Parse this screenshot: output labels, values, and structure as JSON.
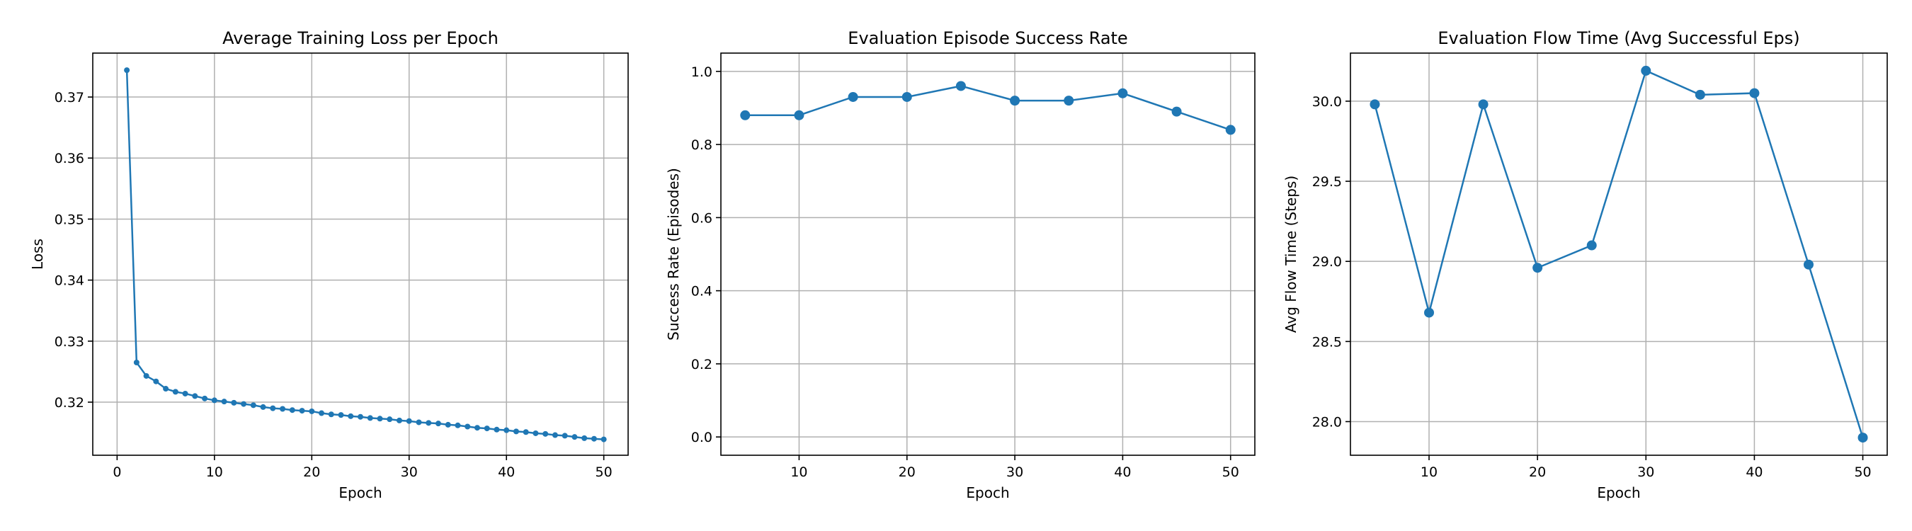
{
  "colors": {
    "series": "#1f77b4",
    "grid": "#b0b0b0"
  },
  "chart_data": [
    {
      "type": "line",
      "title": "Average Training Loss per Epoch",
      "xlabel": "Epoch",
      "ylabel": "Loss",
      "grid": true,
      "marker": "small-dot",
      "xlim": [
        -2.5,
        52.5
      ],
      "ylim": [
        0.3113,
        0.3772
      ],
      "xticks": [
        0,
        10,
        20,
        30,
        40,
        50
      ],
      "yticks": [
        0.32,
        0.33,
        0.34,
        0.35,
        0.36,
        0.37
      ],
      "ytick_labels": [
        "0.32",
        "0.33",
        "0.34",
        "0.35",
        "0.36",
        "0.37"
      ],
      "x": [
        1,
        2,
        3,
        4,
        5,
        6,
        7,
        8,
        9,
        10,
        11,
        12,
        13,
        14,
        15,
        16,
        17,
        18,
        19,
        20,
        21,
        22,
        23,
        24,
        25,
        26,
        27,
        28,
        29,
        30,
        31,
        32,
        33,
        34,
        35,
        36,
        37,
        38,
        39,
        40,
        41,
        42,
        43,
        44,
        45,
        46,
        47,
        48,
        49,
        50
      ],
      "y": [
        0.3744,
        0.3265,
        0.3243,
        0.3234,
        0.3222,
        0.3217,
        0.3214,
        0.321,
        0.3206,
        0.3203,
        0.3201,
        0.3199,
        0.3197,
        0.3195,
        0.3192,
        0.319,
        0.3189,
        0.3187,
        0.3186,
        0.3185,
        0.3182,
        0.318,
        0.3179,
        0.3177,
        0.3176,
        0.3174,
        0.3173,
        0.3172,
        0.317,
        0.3169,
        0.3167,
        0.3166,
        0.3165,
        0.3163,
        0.3162,
        0.316,
        0.3158,
        0.3157,
        0.3155,
        0.3154,
        0.3152,
        0.3151,
        0.3149,
        0.3148,
        0.3146,
        0.3145,
        0.3143,
        0.3141,
        0.314,
        0.3139
      ]
    },
    {
      "type": "line",
      "title": "Evaluation Episode Success Rate",
      "xlabel": "Epoch",
      "ylabel": "Success Rate (Episodes)",
      "grid": true,
      "marker": "dot",
      "xlim": [
        2.75,
        52.25
      ],
      "ylim": [
        -0.05,
        1.05
      ],
      "xticks": [
        10,
        20,
        30,
        40,
        50
      ],
      "yticks": [
        0.0,
        0.2,
        0.4,
        0.6,
        0.8,
        1.0
      ],
      "ytick_labels": [
        "0.0",
        "0.2",
        "0.4",
        "0.6",
        "0.8",
        "1.0"
      ],
      "x": [
        5,
        10,
        15,
        20,
        25,
        30,
        35,
        40,
        45,
        50
      ],
      "y": [
        0.88,
        0.88,
        0.93,
        0.93,
        0.96,
        0.92,
        0.92,
        0.94,
        0.89,
        0.84
      ]
    },
    {
      "type": "line",
      "title": "Evaluation Flow Time (Avg Successful Eps)",
      "xlabel": "Epoch",
      "ylabel": "Avg Flow Time (Steps)",
      "grid": true,
      "marker": "dot",
      "xlim": [
        2.75,
        52.25
      ],
      "ylim": [
        27.79,
        30.3
      ],
      "xticks": [
        10,
        20,
        30,
        40,
        50
      ],
      "yticks": [
        28.0,
        28.5,
        29.0,
        29.5,
        30.0
      ],
      "ytick_labels": [
        "28.0",
        "28.5",
        "29.0",
        "29.5",
        "30.0"
      ],
      "x": [
        5,
        10,
        15,
        20,
        25,
        30,
        35,
        40,
        45,
        50
      ],
      "y": [
        29.98,
        28.68,
        29.98,
        28.96,
        29.1,
        30.19,
        30.04,
        30.05,
        28.98,
        27.9
      ]
    }
  ]
}
